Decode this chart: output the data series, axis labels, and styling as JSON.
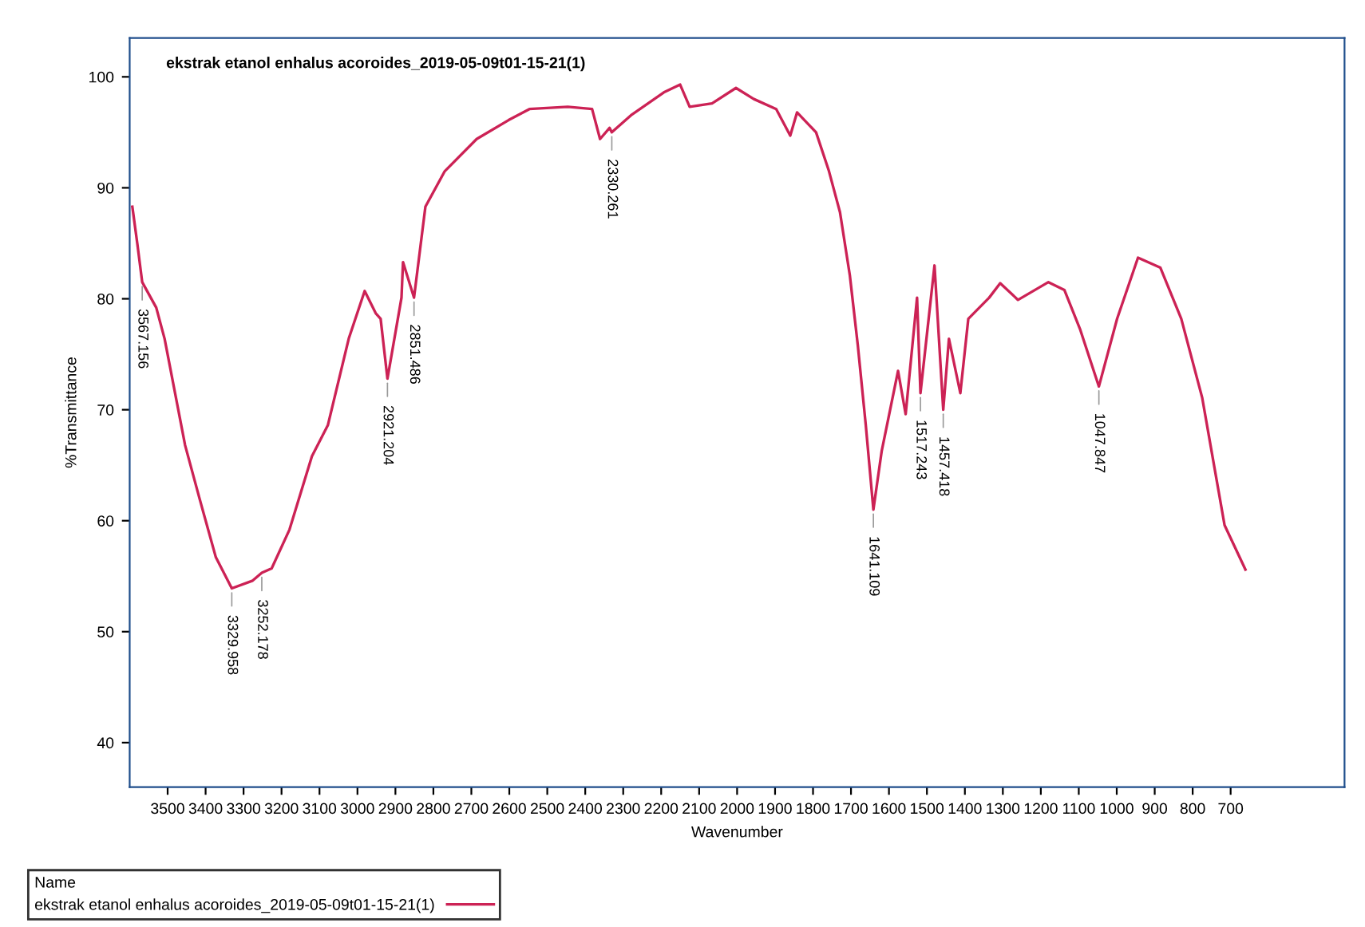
{
  "chart_data": {
    "type": "line",
    "title": "ekstrak etanol enhalus acoroides_2019-05-09t01-15-21(1)",
    "xlabel": "Wavenumber",
    "ylabel": "%Transmittance",
    "legend_title": "Name",
    "x": [
      3593,
      3580,
      3567,
      3530,
      3508,
      3454,
      3416,
      3373,
      3331,
      3276,
      3252,
      3226,
      3179,
      3120,
      3078,
      3023,
      2981,
      2952,
      2939,
      2921,
      2884,
      2880,
      2851,
      2821,
      2770,
      2686,
      2602,
      2547,
      2446,
      2382,
      2361,
      2336,
      2330,
      2277,
      2193,
      2150,
      2125,
      2066,
      2003,
      1956,
      1897,
      1860,
      1842,
      1792,
      1758,
      1729,
      1703,
      1682,
      1661,
      1641,
      1619,
      1576,
      1556,
      1526,
      1517,
      1480,
      1457,
      1442,
      1412,
      1391,
      1336,
      1307,
      1260,
      1180,
      1138,
      1096,
      1047,
      999,
      944,
      885,
      830,
      775,
      716,
      661
    ],
    "series": [
      {
        "name": "ekstrak etanol enhalus acoroides_2019-05-09t01-15-21(1)",
        "color": "#cc2255",
        "values": [
          88.3,
          85.0,
          81.5,
          79.2,
          76.4,
          66.8,
          62.0,
          56.7,
          53.9,
          54.6,
          55.3,
          55.7,
          59.2,
          65.8,
          68.6,
          76.4,
          80.7,
          78.7,
          78.2,
          72.8,
          80.1,
          83.3,
          80.1,
          88.3,
          91.5,
          94.4,
          96.1,
          97.1,
          97.3,
          97.1,
          94.4,
          95.4,
          95.0,
          96.6,
          98.6,
          99.3,
          97.3,
          97.6,
          99.0,
          98.0,
          97.1,
          94.7,
          96.8,
          95.0,
          91.5,
          87.8,
          82.1,
          75.8,
          68.6,
          61.0,
          66.3,
          73.5,
          69.6,
          80.1,
          71.5,
          83.0,
          70.0,
          76.4,
          71.5,
          78.2,
          80.1,
          81.4,
          79.9,
          81.5,
          80.8,
          77.2,
          72.1,
          78.2,
          83.7,
          82.8,
          78.2,
          71.1,
          59.6,
          55.6
        ]
      }
    ],
    "xlim": [
      3600,
      400
    ],
    "ylim": [
      36,
      103.5
    ],
    "xticks": [
      3500,
      3400,
      3300,
      3200,
      3100,
      3000,
      2900,
      2800,
      2700,
      2600,
      2500,
      2400,
      2300,
      2200,
      2100,
      2000,
      1900,
      1800,
      1700,
      1600,
      1500,
      1400,
      1300,
      1200,
      1100,
      1000,
      900,
      800,
      700
    ],
    "yticks": [
      40,
      50,
      60,
      70,
      80,
      90,
      100
    ],
    "grid": false,
    "legend": "bottom left",
    "marker": "none",
    "line_style": "solid",
    "annotations": [
      {
        "text": "3567.156",
        "x": 3567,
        "y": 81.5
      },
      {
        "text": "3329.958",
        "x": 3331,
        "y": 53.9
      },
      {
        "text": "3252.178",
        "x": 3252,
        "y": 55.3
      },
      {
        "text": "2921.204",
        "x": 2921,
        "y": 72.8
      },
      {
        "text": "2851.486",
        "x": 2851,
        "y": 80.1
      },
      {
        "text": "2330.261",
        "x": 2330,
        "y": 95.0
      },
      {
        "text": "1641.109",
        "x": 1641,
        "y": 61.0
      },
      {
        "text": "1517.243",
        "x": 1517,
        "y": 71.5
      },
      {
        "text": "1457.418",
        "x": 1457,
        "y": 70.0
      },
      {
        "text": "1047.847",
        "x": 1047,
        "y": 72.1
      }
    ]
  }
}
